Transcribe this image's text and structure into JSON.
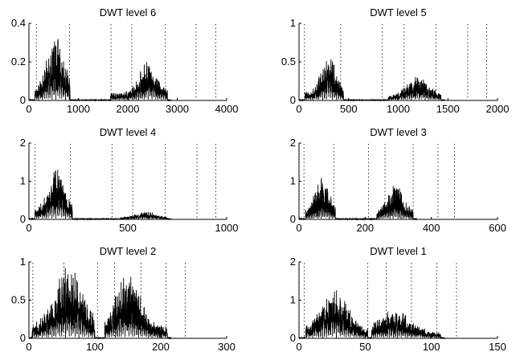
{
  "chart_data": [
    {
      "type": "line",
      "title": "DWT level 6",
      "xlim": [
        0,
        4000
      ],
      "ylim": [
        0,
        0.4
      ],
      "xticks": [
        0,
        1000,
        2000,
        3000,
        4000
      ],
      "yticks": [
        0,
        0.2,
        0.4
      ],
      "xtick_labels": [
        "0",
        "1000",
        "2000",
        "3000",
        "4000"
      ],
      "ytick_labels": [
        "0",
        "0.2",
        "0.4"
      ],
      "markers": [
        150,
        820,
        1660,
        2080,
        2760,
        3380,
        3780
      ],
      "bursts": [
        {
          "x0": 120,
          "x1": 830,
          "peak": 0.37,
          "center": 540,
          "width": 220
        },
        {
          "x0": 1650,
          "x1": 2800,
          "peak": 0.21,
          "center": 2420,
          "width": 260
        }
      ],
      "color": "#000000"
    },
    {
      "type": "line",
      "title": "DWT level 5",
      "xlim": [
        0,
        2000
      ],
      "ylim": [
        0,
        1
      ],
      "xticks": [
        0,
        500,
        1000,
        1500,
        2000
      ],
      "yticks": [
        0,
        0.5,
        1
      ],
      "xtick_labels": [
        "0",
        "500",
        "1000",
        "1500",
        "2000"
      ],
      "ytick_labels": [
        "0",
        "0.5",
        "1"
      ],
      "markers": [
        55,
        420,
        840,
        1060,
        1380,
        1700,
        1890
      ],
      "bursts": [
        {
          "x0": 60,
          "x1": 450,
          "peak": 0.63,
          "center": 300,
          "width": 100
        },
        {
          "x0": 900,
          "x1": 1430,
          "peak": 0.33,
          "center": 1200,
          "width": 150
        }
      ],
      "color": "#000000"
    },
    {
      "type": "line",
      "title": "DWT level 4",
      "xlim": [
        0,
        1000
      ],
      "ylim": [
        0,
        2
      ],
      "xticks": [
        0,
        500,
        1000
      ],
      "yticks": [
        0,
        1,
        2
      ],
      "xtick_labels": [
        "0",
        "500",
        "1000"
      ],
      "ytick_labels": [
        "0",
        "1",
        "2"
      ],
      "markers": [
        30,
        210,
        420,
        525,
        690,
        850,
        945
      ],
      "bursts": [
        {
          "x0": 30,
          "x1": 220,
          "peak": 1.55,
          "center": 140,
          "width": 55
        },
        {
          "x0": 460,
          "x1": 700,
          "peak": 0.2,
          "center": 590,
          "width": 70
        }
      ],
      "color": "#000000"
    },
    {
      "type": "line",
      "title": "DWT level 3",
      "xlim": [
        0,
        600
      ],
      "ylim": [
        0,
        2
      ],
      "xticks": [
        0,
        200,
        400,
        600
      ],
      "yticks": [
        0,
        1,
        2
      ],
      "xtick_labels": [
        "0",
        "200",
        "400",
        "600"
      ],
      "ytick_labels": [
        "0",
        "1",
        "2"
      ],
      "markers": [
        15,
        105,
        210,
        260,
        345,
        420,
        470
      ],
      "bursts": [
        {
          "x0": 20,
          "x1": 110,
          "peak": 1.1,
          "center": 70,
          "width": 30
        },
        {
          "x0": 235,
          "x1": 345,
          "peak": 0.95,
          "center": 290,
          "width": 35
        }
      ],
      "color": "#000000"
    },
    {
      "type": "line",
      "title": "DWT level 2",
      "xlim": [
        0,
        300
      ],
      "ylim": [
        0,
        1
      ],
      "xticks": [
        0,
        100,
        200,
        300
      ],
      "yticks": [
        0,
        0.5,
        1
      ],
      "xtick_labels": [
        "0",
        "100",
        "200",
        "300"
      ],
      "ytick_labels": [
        "0",
        "0.5",
        "1"
      ],
      "markers": [
        6,
        53,
        104,
        130,
        170,
        208,
        237
      ],
      "bursts": [
        {
          "x0": 5,
          "x1": 100,
          "peak": 0.95,
          "center": 60,
          "width": 30
        },
        {
          "x0": 115,
          "x1": 210,
          "peak": 0.9,
          "center": 150,
          "width": 25
        }
      ],
      "color": "#000000"
    },
    {
      "type": "line",
      "title": "DWT level 1",
      "xlim": [
        0,
        150
      ],
      "ylim": [
        0,
        2
      ],
      "xticks": [
        0,
        50,
        100,
        150
      ],
      "yticks": [
        0,
        1,
        2
      ],
      "xtick_labels": [
        "0",
        "50",
        "100",
        "150"
      ],
      "ytick_labels": [
        "0",
        "1",
        "2"
      ],
      "markers": [
        4,
        52,
        66,
        85,
        104,
        119
      ],
      "bursts": [
        {
          "x0": 5,
          "x1": 52,
          "peak": 1.3,
          "center": 27,
          "width": 14
        },
        {
          "x0": 55,
          "x1": 107,
          "peak": 0.75,
          "center": 72,
          "width": 18
        }
      ],
      "color": "#000000"
    }
  ]
}
